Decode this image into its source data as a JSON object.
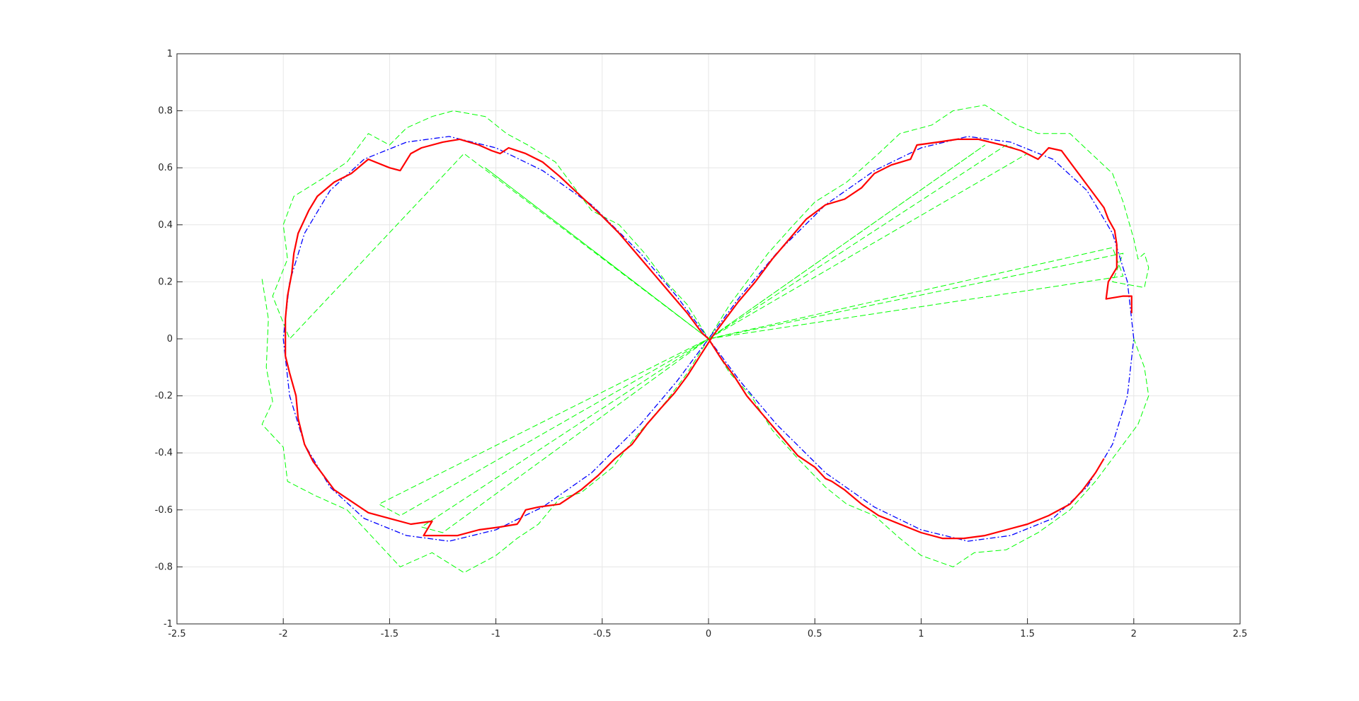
{
  "chart_data": {
    "type": "line",
    "title": "",
    "xlabel": "",
    "ylabel": "",
    "xlim": [
      -2.5,
      2.5
    ],
    "ylim": [
      -1,
      1
    ],
    "x_ticks": [
      -2.5,
      -2,
      -1.5,
      -1,
      -0.5,
      0,
      0.5,
      1,
      1.5,
      2,
      2.5
    ],
    "y_ticks": [
      -1,
      -0.8,
      -0.6,
      -0.4,
      -0.2,
      0,
      0.2,
      0.4,
      0.6,
      0.8,
      1
    ],
    "x_tick_labels": [
      "-2.5",
      "-2",
      "-1.5",
      "-1",
      "-0.5",
      "0",
      "0.5",
      "1",
      "1.5",
      "2",
      "2.5"
    ],
    "y_tick_labels": [
      "-1",
      "-0.8",
      "-0.6",
      "-0.4",
      "-0.2",
      "0",
      "0.2",
      "0.4",
      "0.6",
      "0.8",
      "1"
    ],
    "grid": true,
    "legend": "none",
    "series": [
      {
        "style": "dash-dot",
        "color": "#0000ff",
        "points": [
          [
            2.0,
            0.0
          ],
          [
            1.97,
            0.2
          ],
          [
            1.9,
            0.37
          ],
          [
            1.78,
            0.52
          ],
          [
            1.62,
            0.63
          ],
          [
            1.42,
            0.69
          ],
          [
            1.22,
            0.71
          ],
          [
            1.0,
            0.67
          ],
          [
            0.78,
            0.59
          ],
          [
            0.55,
            0.47
          ],
          [
            0.32,
            0.3
          ],
          [
            0.15,
            0.15
          ],
          [
            0.0,
            0.0
          ],
          [
            -0.15,
            -0.15
          ],
          [
            -0.32,
            -0.3
          ],
          [
            -0.55,
            -0.47
          ],
          [
            -0.78,
            -0.59
          ],
          [
            -1.0,
            -0.67
          ],
          [
            -1.22,
            -0.71
          ],
          [
            -1.42,
            -0.69
          ],
          [
            -1.62,
            -0.63
          ],
          [
            -1.78,
            -0.52
          ],
          [
            -1.9,
            -0.37
          ],
          [
            -1.97,
            -0.2
          ],
          [
            -2.0,
            0.0
          ],
          [
            -1.97,
            0.2
          ],
          [
            -1.9,
            0.37
          ],
          [
            -1.78,
            0.52
          ],
          [
            -1.62,
            0.63
          ],
          [
            -1.42,
            0.69
          ],
          [
            -1.22,
            0.71
          ],
          [
            -1.0,
            0.67
          ],
          [
            -0.78,
            0.59
          ],
          [
            -0.55,
            0.47
          ],
          [
            -0.32,
            0.3
          ],
          [
            -0.15,
            0.15
          ],
          [
            0.0,
            0.0
          ],
          [
            0.15,
            -0.15
          ],
          [
            0.32,
            -0.3
          ],
          [
            0.55,
            -0.47
          ],
          [
            0.78,
            -0.59
          ],
          [
            1.0,
            -0.67
          ],
          [
            1.22,
            -0.71
          ],
          [
            1.42,
            -0.69
          ],
          [
            1.62,
            -0.63
          ],
          [
            1.78,
            -0.52
          ],
          [
            1.9,
            -0.37
          ],
          [
            1.97,
            -0.2
          ],
          [
            2.0,
            0.0
          ]
        ]
      },
      {
        "style": "solid",
        "color": "#ff0000",
        "points": [
          [
            1.99,
            0.09
          ],
          [
            1.99,
            0.15
          ],
          [
            1.95,
            0.15
          ],
          [
            1.87,
            0.14
          ],
          [
            1.88,
            0.2
          ],
          [
            1.92,
            0.25
          ],
          [
            1.92,
            0.33
          ],
          [
            1.91,
            0.38
          ],
          [
            1.88,
            0.42
          ],
          [
            1.86,
            0.46
          ],
          [
            1.8,
            0.52
          ],
          [
            1.72,
            0.6
          ],
          [
            1.66,
            0.66
          ],
          [
            1.6,
            0.67
          ],
          [
            1.55,
            0.63
          ],
          [
            1.47,
            0.66
          ],
          [
            1.38,
            0.68
          ],
          [
            1.27,
            0.7
          ],
          [
            1.17,
            0.7
          ],
          [
            1.08,
            0.69
          ],
          [
            0.98,
            0.68
          ],
          [
            0.95,
            0.63
          ],
          [
            0.86,
            0.61
          ],
          [
            0.78,
            0.58
          ],
          [
            0.72,
            0.53
          ],
          [
            0.64,
            0.49
          ],
          [
            0.55,
            0.47
          ],
          [
            0.46,
            0.42
          ],
          [
            0.38,
            0.35
          ],
          [
            0.3,
            0.28
          ],
          [
            0.22,
            0.2
          ],
          [
            0.14,
            0.13
          ],
          [
            0.07,
            0.06
          ],
          [
            0.02,
            0.01
          ],
          [
            -0.04,
            -0.06
          ],
          [
            -0.1,
            -0.13
          ],
          [
            -0.16,
            -0.19
          ],
          [
            -0.22,
            -0.24
          ],
          [
            -0.29,
            -0.3
          ],
          [
            -0.36,
            -0.37
          ],
          [
            -0.44,
            -0.42
          ],
          [
            -0.52,
            -0.48
          ],
          [
            -0.6,
            -0.53
          ],
          [
            -0.7,
            -0.58
          ],
          [
            -0.8,
            -0.59
          ],
          [
            -0.86,
            -0.6
          ],
          [
            -0.89,
            -0.64
          ],
          [
            -0.9,
            -0.65
          ],
          [
            -0.98,
            -0.66
          ],
          [
            -1.08,
            -0.67
          ],
          [
            -1.18,
            -0.69
          ],
          [
            -1.3,
            -0.69
          ],
          [
            -1.34,
            -0.69
          ],
          [
            -1.3,
            -0.64
          ],
          [
            -1.4,
            -0.65
          ],
          [
            -1.5,
            -0.63
          ],
          [
            -1.6,
            -0.61
          ],
          [
            -1.68,
            -0.57
          ],
          [
            -1.76,
            -0.53
          ],
          [
            -1.82,
            -0.47
          ],
          [
            -1.86,
            -0.43
          ],
          [
            -1.9,
            -0.37
          ],
          [
            -1.93,
            -0.28
          ],
          [
            -1.94,
            -0.2
          ],
          [
            -1.97,
            -0.12
          ],
          [
            -1.99,
            -0.06
          ],
          [
            -1.99,
            0.0
          ],
          [
            -1.99,
            0.07
          ],
          [
            -1.98,
            0.15
          ],
          [
            -1.96,
            0.23
          ],
          [
            -1.95,
            0.3
          ],
          [
            -1.93,
            0.37
          ],
          [
            -1.88,
            0.45
          ],
          [
            -1.84,
            0.5
          ],
          [
            -1.76,
            0.55
          ],
          [
            -1.68,
            0.58
          ],
          [
            -1.6,
            0.63
          ],
          [
            -1.5,
            0.6
          ],
          [
            -1.45,
            0.59
          ],
          [
            -1.4,
            0.65
          ],
          [
            -1.35,
            0.67
          ],
          [
            -1.25,
            0.69
          ],
          [
            -1.17,
            0.7
          ],
          [
            -1.08,
            0.68
          ],
          [
            -1.02,
            0.66
          ],
          [
            -0.98,
            0.65
          ],
          [
            -0.94,
            0.67
          ],
          [
            -0.86,
            0.65
          ],
          [
            -0.78,
            0.62
          ],
          [
            -0.7,
            0.57
          ],
          [
            -0.6,
            0.5
          ],
          [
            -0.5,
            0.43
          ],
          [
            -0.42,
            0.37
          ],
          [
            -0.34,
            0.3
          ],
          [
            -0.26,
            0.23
          ],
          [
            -0.18,
            0.16
          ],
          [
            -0.1,
            0.09
          ],
          [
            -0.03,
            0.02
          ],
          [
            0.0,
            0.0
          ],
          [
            0.06,
            -0.07
          ],
          [
            0.12,
            -0.13
          ],
          [
            0.18,
            -0.2
          ],
          [
            0.26,
            -0.27
          ],
          [
            0.34,
            -0.34
          ],
          [
            0.42,
            -0.41
          ],
          [
            0.5,
            -0.45
          ],
          [
            0.55,
            -0.49
          ],
          [
            0.58,
            -0.5
          ],
          [
            0.64,
            -0.53
          ],
          [
            0.72,
            -0.58
          ],
          [
            0.8,
            -0.62
          ],
          [
            0.9,
            -0.65
          ],
          [
            1.0,
            -0.68
          ],
          [
            1.1,
            -0.7
          ],
          [
            1.2,
            -0.7
          ],
          [
            1.3,
            -0.69
          ],
          [
            1.4,
            -0.67
          ],
          [
            1.5,
            -0.65
          ],
          [
            1.6,
            -0.62
          ],
          [
            1.7,
            -0.58
          ],
          [
            1.76,
            -0.53
          ],
          [
            1.82,
            -0.47
          ],
          [
            1.86,
            -0.42
          ]
        ]
      },
      {
        "style": "dashed",
        "color": "#00ff00",
        "points": [
          [
            -2.1,
            0.21
          ],
          [
            -2.07,
            0.07
          ],
          [
            -2.08,
            -0.1
          ],
          [
            -2.05,
            -0.22
          ],
          [
            -2.1,
            -0.3
          ],
          [
            -2.0,
            -0.38
          ],
          [
            -1.98,
            -0.5
          ],
          [
            -1.85,
            -0.55
          ],
          [
            -1.7,
            -0.6
          ],
          [
            -1.55,
            -0.72
          ],
          [
            -1.45,
            -0.8
          ],
          [
            -1.3,
            -0.75
          ],
          [
            -1.15,
            -0.82
          ],
          [
            -1.0,
            -0.76
          ],
          [
            -0.9,
            -0.7
          ],
          [
            -0.8,
            -0.65
          ],
          [
            -0.7,
            -0.56
          ],
          [
            -0.6,
            -0.54
          ],
          [
            -0.45,
            -0.45
          ],
          [
            -0.35,
            -0.35
          ],
          [
            -0.2,
            -0.22
          ],
          [
            -0.1,
            -0.12
          ],
          [
            0.0,
            0.0
          ],
          [
            -1.55,
            -0.58
          ],
          [
            -1.45,
            -0.62
          ],
          [
            0.0,
            0.0
          ],
          [
            -1.35,
            -0.66
          ],
          [
            -1.25,
            -0.68
          ],
          [
            0.0,
            0.0
          ],
          [
            -0.1,
            0.12
          ],
          [
            -0.2,
            0.2
          ],
          [
            -0.3,
            0.3
          ],
          [
            -0.42,
            0.4
          ],
          [
            -0.55,
            0.45
          ],
          [
            -0.65,
            0.55
          ],
          [
            -0.72,
            0.62
          ],
          [
            -0.85,
            0.68
          ],
          [
            -0.95,
            0.72
          ],
          [
            -1.05,
            0.78
          ],
          [
            -1.2,
            0.8
          ],
          [
            -1.3,
            0.78
          ],
          [
            -1.42,
            0.74
          ],
          [
            -1.5,
            0.68
          ],
          [
            -1.6,
            0.72
          ],
          [
            -1.7,
            0.62
          ],
          [
            -1.82,
            0.56
          ],
          [
            -1.95,
            0.5
          ],
          [
            -2.0,
            0.4
          ],
          [
            -1.98,
            0.28
          ],
          [
            -2.05,
            0.15
          ],
          [
            -1.97,
            0.0
          ],
          [
            -1.15,
            0.65
          ],
          [
            0.0,
            0.0
          ],
          [
            -1.05,
            0.6
          ],
          [
            0.0,
            0.0
          ],
          [
            0.1,
            0.12
          ],
          [
            0.2,
            0.22
          ],
          [
            0.28,
            0.3
          ],
          [
            0.4,
            0.4
          ],
          [
            0.5,
            0.48
          ],
          [
            0.65,
            0.55
          ],
          [
            0.8,
            0.65
          ],
          [
            0.9,
            0.72
          ],
          [
            1.05,
            0.75
          ],
          [
            1.15,
            0.8
          ],
          [
            1.3,
            0.82
          ],
          [
            1.45,
            0.75
          ],
          [
            1.55,
            0.72
          ],
          [
            1.7,
            0.72
          ],
          [
            1.8,
            0.65
          ],
          [
            1.9,
            0.58
          ],
          [
            1.95,
            0.48
          ],
          [
            2.0,
            0.35
          ],
          [
            2.02,
            0.28
          ],
          [
            2.05,
            0.3
          ],
          [
            2.07,
            0.25
          ],
          [
            2.05,
            0.18
          ],
          [
            1.9,
            0.2
          ],
          [
            1.95,
            0.3
          ],
          [
            0.0,
            0.0
          ],
          [
            1.9,
            0.32
          ],
          [
            1.95,
            0.22
          ],
          [
            0.0,
            0.0
          ],
          [
            1.4,
            0.68
          ],
          [
            1.5,
            0.65
          ],
          [
            0.0,
            0.0
          ],
          [
            1.3,
            0.68
          ],
          [
            0.0,
            0.0
          ],
          [
            0.1,
            -0.12
          ],
          [
            0.2,
            -0.2
          ],
          [
            0.3,
            -0.32
          ],
          [
            0.42,
            -0.42
          ],
          [
            0.55,
            -0.52
          ],
          [
            0.65,
            -0.58
          ],
          [
            0.78,
            -0.62
          ],
          [
            0.9,
            -0.7
          ],
          [
            1.0,
            -0.76
          ],
          [
            1.15,
            -0.8
          ],
          [
            1.25,
            -0.75
          ],
          [
            1.4,
            -0.74
          ],
          [
            1.55,
            -0.68
          ],
          [
            1.7,
            -0.6
          ],
          [
            1.82,
            -0.5
          ],
          [
            1.92,
            -0.4
          ],
          [
            2.02,
            -0.3
          ],
          [
            2.07,
            -0.2
          ],
          [
            2.05,
            -0.1
          ],
          [
            2.0,
            0.0
          ]
        ]
      }
    ]
  }
}
